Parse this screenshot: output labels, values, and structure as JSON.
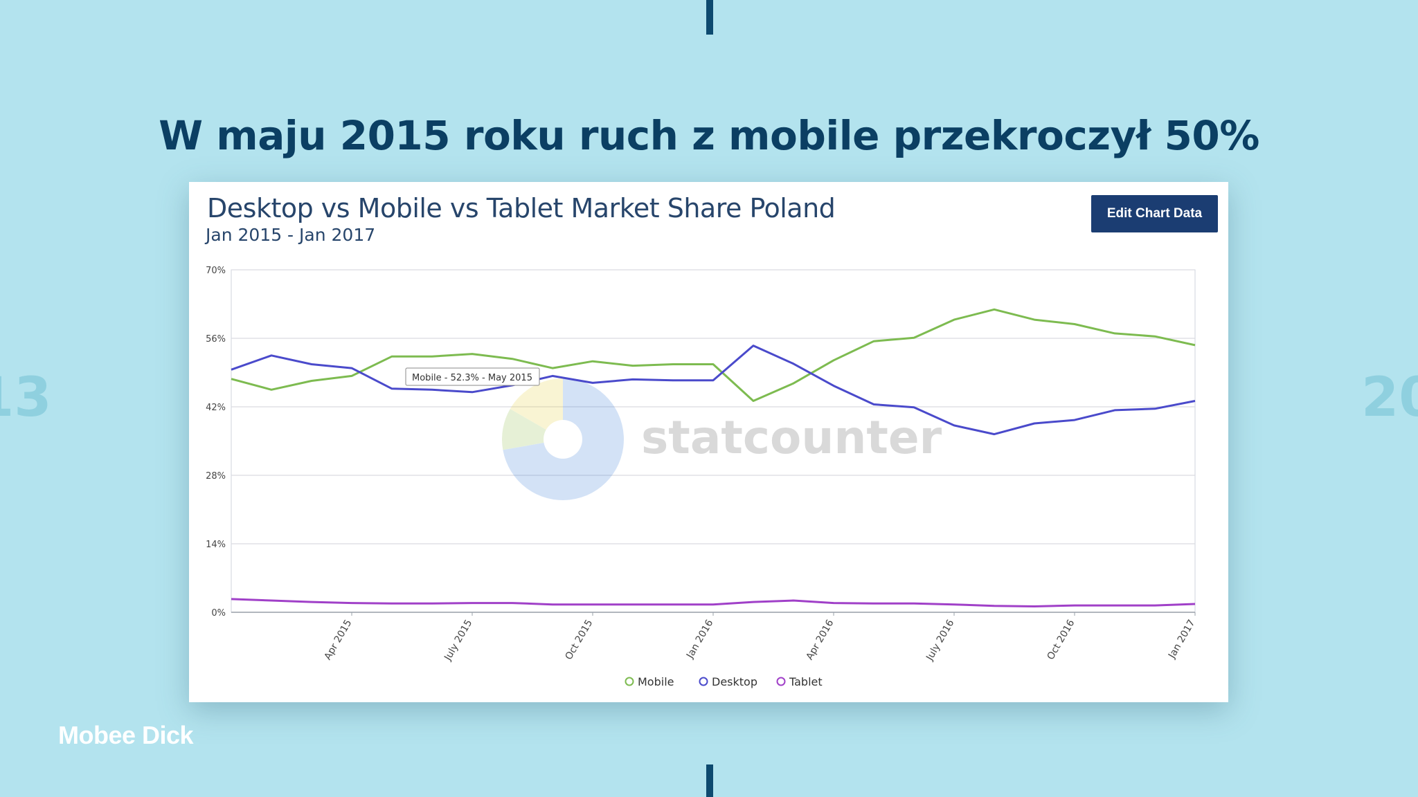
{
  "slide": {
    "title": "W maju 2015 roku ruch z mobile przekroczył 50%",
    "side_year_left": "13",
    "side_year_right": "20",
    "brand": "Mobee Dick"
  },
  "toolbar": {
    "edit_label": "Edit Chart Data"
  },
  "watermark": {
    "text": "statcounter"
  },
  "colors": {
    "background": "#b3e3ee",
    "mobile": "#7dbb50",
    "desktop": "#4a4acb",
    "tablet": "#a040c8",
    "button": "#1b3d72"
  },
  "chart_data": {
    "type": "line",
    "title": "Desktop vs Mobile vs Tablet Market Share Poland",
    "subtitle": "Jan 2015 - Jan 2017",
    "x": [
      "2015-01",
      "2015-02",
      "2015-03",
      "2015-04",
      "2015-05",
      "2015-06",
      "2015-07",
      "2015-08",
      "2015-09",
      "2015-10",
      "2015-11",
      "2015-12",
      "2016-01",
      "2016-02",
      "2016-03",
      "2016-04",
      "2016-05",
      "2016-06",
      "2016-07",
      "2016-08",
      "2016-09",
      "2016-10",
      "2016-11",
      "2016-12",
      "2017-01"
    ],
    "x_tick_labels": [
      {
        "x": "2015-04",
        "label": "Apr 2015"
      },
      {
        "x": "2015-07",
        "label": "July 2015"
      },
      {
        "x": "2015-10",
        "label": "Oct 2015"
      },
      {
        "x": "2016-01",
        "label": "Jan 2016"
      },
      {
        "x": "2016-04",
        "label": "Apr 2016"
      },
      {
        "x": "2016-07",
        "label": "July 2016"
      },
      {
        "x": "2016-10",
        "label": "Oct 2016"
      },
      {
        "x": "2017-01",
        "label": "Jan 2017"
      }
    ],
    "y_ticks": [
      0,
      14,
      28,
      42,
      56,
      70
    ],
    "y_tick_labels": [
      "0%",
      "14%",
      "28%",
      "42%",
      "56%",
      "70%"
    ],
    "ylim": [
      0,
      70
    ],
    "grid": true,
    "legend": "bottom",
    "series": [
      {
        "name": "Mobile",
        "values": [
          47.7,
          45.5,
          47.3,
          48.3,
          52.3,
          52.3,
          52.8,
          51.8,
          49.9,
          51.3,
          50.4,
          50.7,
          50.7,
          43.2,
          46.8,
          51.5,
          55.4,
          56.1,
          59.8,
          61.9,
          59.8,
          58.9,
          57.0,
          56.4,
          54.6
        ]
      },
      {
        "name": "Desktop",
        "values": [
          49.6,
          52.5,
          50.7,
          49.9,
          45.7,
          45.5,
          45.0,
          46.4,
          48.3,
          46.9,
          47.6,
          47.4,
          47.4,
          54.5,
          50.8,
          46.3,
          42.5,
          41.9,
          38.2,
          36.4,
          38.6,
          39.3,
          41.3,
          41.6,
          43.2
        ]
      },
      {
        "name": "Tablet",
        "values": [
          2.7,
          2.4,
          2.1,
          1.9,
          1.8,
          1.8,
          1.9,
          1.9,
          1.6,
          1.6,
          1.6,
          1.6,
          1.6,
          2.1,
          2.4,
          1.9,
          1.8,
          1.8,
          1.6,
          1.3,
          1.2,
          1.4,
          1.4,
          1.4,
          1.7
        ]
      }
    ],
    "tooltip": {
      "text": "Mobile - 52.3% - May 2015"
    }
  }
}
